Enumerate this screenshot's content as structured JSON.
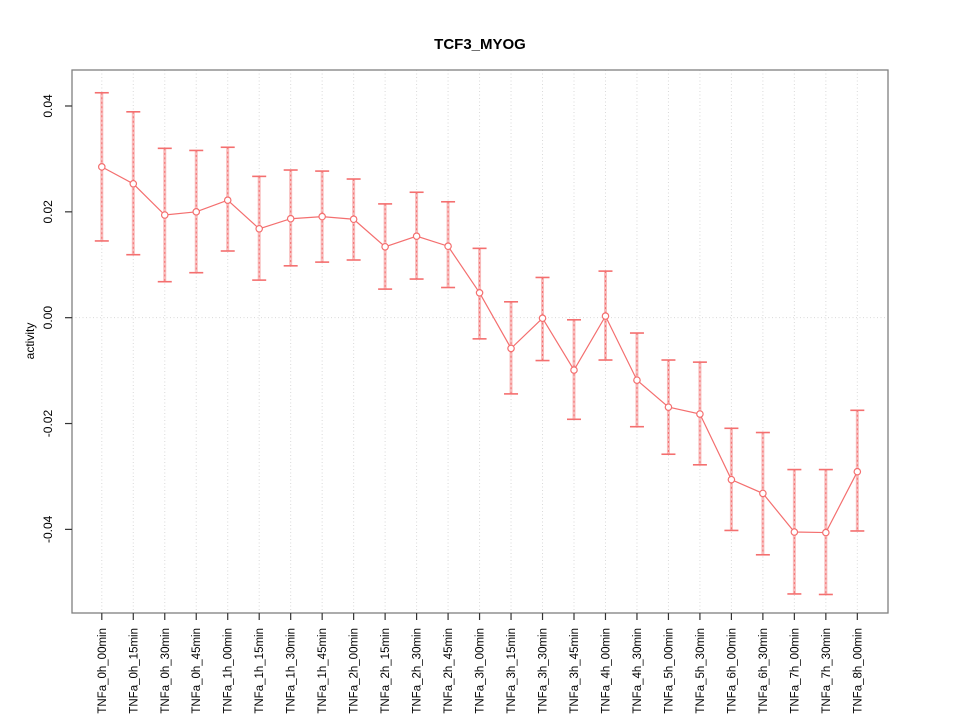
{
  "chart_data": {
    "type": "line",
    "title": "TCF3_MYOG",
    "xlabel": "",
    "ylabel": "activity",
    "ylim": [
      -0.0558,
      0.0468
    ],
    "ytick_values": [
      0.04,
      0.02,
      0,
      -0.02,
      -0.04
    ],
    "ytick_labels": [
      "0.04",
      "0.02",
      "0.00",
      "-0.02",
      "-0.04"
    ],
    "grid": {
      "vertical": "dotted line at every category",
      "horizontal": "dotted line at y=0"
    },
    "legend": null,
    "marker": "open-circle",
    "error_bars": true,
    "categories": [
      "TNFa_0h_00min",
      "TNFa_0h_15min",
      "TNFa_0h_30min",
      "TNFa_0h_45min",
      "TNFa_1h_00min",
      "TNFa_1h_15min",
      "TNFa_1h_30min",
      "TNFa_1h_45min",
      "TNFa_2h_00min",
      "TNFa_2h_15min",
      "TNFa_2h_30min",
      "TNFa_2h_45min",
      "TNFa_3h_00min",
      "TNFa_3h_15min",
      "TNFa_3h_30min",
      "TNFa_3h_45min",
      "TNFa_4h_00min",
      "TNFa_4h_30min",
      "TNFa_5h_00min",
      "TNFa_5h_30min",
      "TNFa_6h_00min",
      "TNFa_6h_30min",
      "TNFa_7h_00min",
      "TNFa_7h_30min",
      "TNFa_8h_00min"
    ],
    "series": [
      {
        "name": "activity",
        "values": [
          0.0285,
          0.0253,
          0.0194,
          0.02,
          0.0222,
          0.0168,
          0.0187,
          0.0191,
          0.0186,
          0.0134,
          0.0154,
          0.0135,
          0.0047,
          -0.0058,
          -0.0001,
          -0.0099,
          0.0003,
          -0.0118,
          -0.0169,
          -0.0182,
          -0.0306,
          -0.0332,
          -0.0405,
          -0.0406,
          -0.0291
        ],
        "upper": [
          0.0425,
          0.0389,
          0.032,
          0.0316,
          0.0322,
          0.0267,
          0.0279,
          0.0277,
          0.0262,
          0.0215,
          0.0237,
          0.0219,
          0.0131,
          0.003,
          0.0076,
          -0.0004,
          0.0088,
          -0.0029,
          -0.008,
          -0.0084,
          -0.0209,
          -0.0217,
          -0.0287,
          -0.0287,
          -0.0175
        ],
        "lower": [
          0.0145,
          0.0119,
          0.0068,
          0.0085,
          0.0126,
          0.0071,
          0.0098,
          0.0105,
          0.0109,
          0.0054,
          0.0073,
          0.0057,
          -0.004,
          -0.0144,
          -0.0081,
          -0.0192,
          -0.008,
          -0.0206,
          -0.0258,
          -0.0278,
          -0.0402,
          -0.0448,
          -0.0522,
          -0.0523,
          -0.0403
        ]
      }
    ],
    "colors": {
      "line": "#f46f6f",
      "band": "#f8bcbc",
      "grid": "#d9d9d9",
      "box": "#808080",
      "text": "#000000"
    }
  }
}
